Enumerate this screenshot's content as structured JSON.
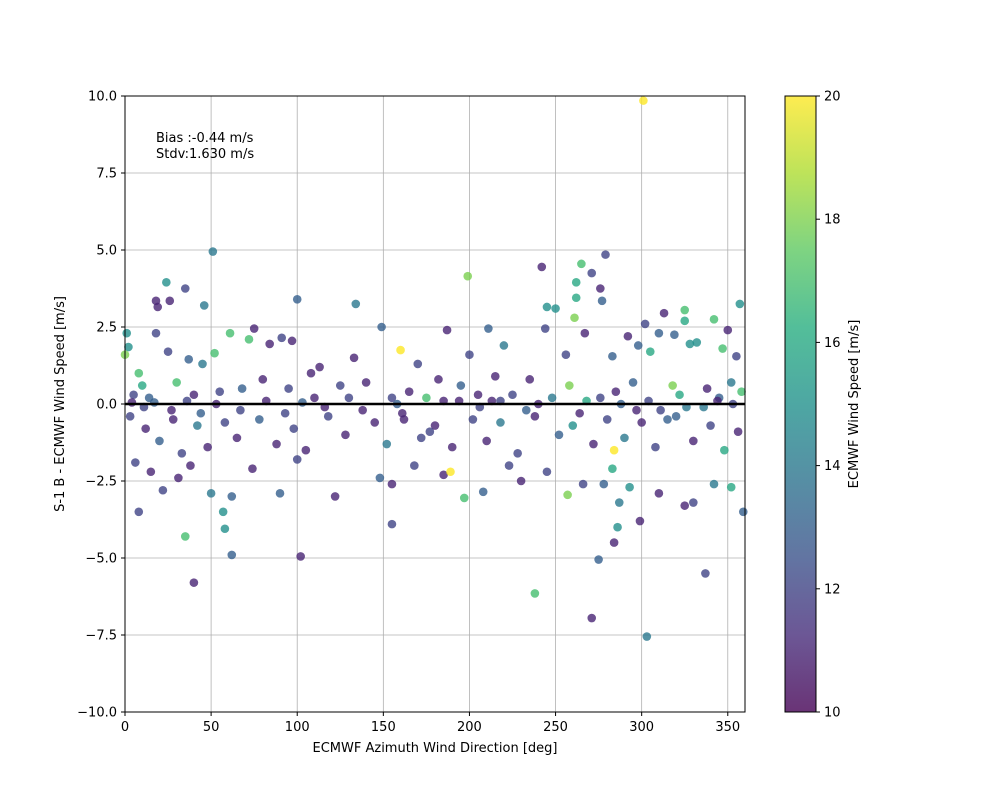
{
  "chart_data": {
    "type": "scatter",
    "xlabel": "ECMWF Azimuth Wind Direction [deg]",
    "ylabel": "S-1 B - ECMWF Wind Speed [m/s]",
    "xlim": [
      0,
      360
    ],
    "ylim": [
      -10,
      10
    ],
    "x_ticks": [
      0,
      50,
      100,
      150,
      200,
      250,
      300,
      350
    ],
    "y_ticks": [
      -10.0,
      -7.5,
      -5.0,
      -2.5,
      0.0,
      2.5,
      5.0,
      7.5,
      10.0
    ],
    "x_tick_labels": [
      "0",
      "50",
      "100",
      "150",
      "200",
      "250",
      "300",
      "350"
    ],
    "y_tick_labels": [
      "−10.0",
      "−7.5",
      "−5.0",
      "−2.5",
      "0.0",
      "2.5",
      "5.0",
      "7.5",
      "10.0"
    ],
    "grid": true,
    "reference_line": {
      "y": 0,
      "color": "#000000"
    },
    "annotations": {
      "bias": "Bias :-0.44 m/s",
      "stdv": "Stdv:1.630 m/s"
    },
    "colorbar": {
      "label": "ECMWF Wind Speed [m/s]",
      "range": [
        10,
        20
      ],
      "ticks": [
        10,
        12,
        14,
        16,
        18,
        20
      ],
      "tick_labels": [
        "10",
        "12",
        "14",
        "16",
        "18",
        "20"
      ],
      "colormap": "viridis"
    },
    "marker_alpha": 0.8,
    "points": [
      [
        301,
        9.85,
        20
      ],
      [
        51,
        4.95,
        14
      ],
      [
        199,
        4.15,
        18
      ],
      [
        242,
        4.45,
        11
      ],
      [
        279,
        4.85,
        12
      ],
      [
        265,
        4.55,
        17
      ],
      [
        271,
        4.25,
        12
      ],
      [
        24,
        3.95,
        15
      ],
      [
        35,
        3.75,
        12
      ],
      [
        100,
        3.4,
        13
      ],
      [
        134,
        3.25,
        14
      ],
      [
        46,
        3.2,
        14
      ],
      [
        18,
        3.35,
        11
      ],
      [
        19,
        3.15,
        11
      ],
      [
        26,
        3.35,
        11
      ],
      [
        262,
        3.95,
        16
      ],
      [
        262,
        3.45,
        16
      ],
      [
        276,
        3.75,
        11
      ],
      [
        277,
        3.35,
        13
      ],
      [
        245,
        3.15,
        15
      ],
      [
        250,
        3.1,
        15
      ],
      [
        325,
        3.05,
        17
      ],
      [
        313,
        2.95,
        11
      ],
      [
        357,
        3.25,
        15
      ],
      [
        342,
        2.75,
        17
      ],
      [
        261,
        2.8,
        18
      ],
      [
        302,
        2.6,
        12
      ],
      [
        325,
        2.7,
        16
      ],
      [
        149,
        2.5,
        13
      ],
      [
        1,
        2.3,
        15
      ],
      [
        18,
        2.3,
        12
      ],
      [
        61,
        2.3,
        17
      ],
      [
        75,
        2.45,
        11
      ],
      [
        91,
        2.15,
        12
      ],
      [
        97,
        2.05,
        11
      ],
      [
        113,
        1.2,
        11
      ],
      [
        160,
        1.75,
        20
      ],
      [
        187,
        2.4,
        11
      ],
      [
        211,
        2.45,
        13
      ],
      [
        244,
        2.45,
        12
      ],
      [
        267,
        2.3,
        11
      ],
      [
        292,
        2.2,
        11
      ],
      [
        310,
        2.3,
        13
      ],
      [
        319,
        2.25,
        13
      ],
      [
        332,
        2.0,
        15
      ],
      [
        350,
        2.4,
        11
      ],
      [
        2,
        1.85,
        15
      ],
      [
        25,
        1.7,
        12
      ],
      [
        37,
        1.45,
        13
      ],
      [
        52,
        1.65,
        17
      ],
      [
        72,
        2.1,
        17
      ],
      [
        84,
        1.95,
        11
      ],
      [
        108,
        1.0,
        11
      ],
      [
        133,
        1.5,
        11
      ],
      [
        170,
        1.3,
        12
      ],
      [
        200,
        1.6,
        12
      ],
      [
        220,
        1.9,
        14
      ],
      [
        256,
        1.6,
        12
      ],
      [
        283,
        1.55,
        13
      ],
      [
        298,
        1.9,
        13
      ],
      [
        305,
        1.7,
        16
      ],
      [
        328,
        1.95,
        15
      ],
      [
        347,
        1.8,
        17
      ],
      [
        355,
        1.55,
        12
      ],
      [
        0,
        1.6,
        18
      ],
      [
        5,
        0.3,
        12
      ],
      [
        8,
        1.0,
        17
      ],
      [
        10,
        0.6,
        16
      ],
      [
        14,
        0.2,
        13
      ],
      [
        30,
        0.7,
        17
      ],
      [
        40,
        0.3,
        11
      ],
      [
        45,
        1.3,
        14
      ],
      [
        55,
        0.4,
        12
      ],
      [
        68,
        0.5,
        13
      ],
      [
        80,
        0.8,
        11
      ],
      [
        95,
        0.5,
        12
      ],
      [
        110,
        0.2,
        11
      ],
      [
        125,
        0.6,
        12
      ],
      [
        140,
        0.7,
        11
      ],
      [
        155,
        0.2,
        12
      ],
      [
        165,
        0.4,
        11
      ],
      [
        175,
        0.2,
        17
      ],
      [
        182,
        0.8,
        11
      ],
      [
        195,
        0.6,
        13
      ],
      [
        205,
        0.3,
        11
      ],
      [
        215,
        0.9,
        11
      ],
      [
        225,
        0.3,
        12
      ],
      [
        235,
        0.8,
        11
      ],
      [
        248,
        0.2,
        14
      ],
      [
        258,
        0.6,
        18
      ],
      [
        268,
        0.1,
        16
      ],
      [
        285,
        0.4,
        11
      ],
      [
        295,
        0.7,
        13
      ],
      [
        318,
        0.6,
        18
      ],
      [
        322,
        0.3,
        16
      ],
      [
        338,
        0.5,
        11
      ],
      [
        345,
        0.2,
        13
      ],
      [
        352,
        0.7,
        14
      ],
      [
        358,
        0.4,
        17
      ],
      [
        3,
        -0.4,
        12
      ],
      [
        12,
        -0.8,
        11
      ],
      [
        20,
        -1.2,
        13
      ],
      [
        28,
        -0.5,
        11
      ],
      [
        33,
        -1.6,
        12
      ],
      [
        42,
        -0.7,
        14
      ],
      [
        48,
        -1.4,
        11
      ],
      [
        58,
        -0.6,
        12
      ],
      [
        65,
        -1.1,
        11
      ],
      [
        78,
        -0.5,
        13
      ],
      [
        88,
        -1.3,
        11
      ],
      [
        98,
        -0.8,
        12
      ],
      [
        105,
        -1.5,
        11
      ],
      [
        118,
        -0.4,
        12
      ],
      [
        128,
        -1.0,
        11
      ],
      [
        145,
        -0.6,
        11
      ],
      [
        152,
        -1.3,
        14
      ],
      [
        162,
        -0.5,
        11
      ],
      [
        172,
        -1.1,
        12
      ],
      [
        180,
        -0.7,
        11
      ],
      [
        190,
        -1.4,
        11
      ],
      [
        202,
        -0.5,
        12
      ],
      [
        210,
        -1.2,
        11
      ],
      [
        218,
        -0.6,
        14
      ],
      [
        228,
        -1.6,
        12
      ],
      [
        238,
        -0.4,
        11
      ],
      [
        252,
        -1.0,
        13
      ],
      [
        260,
        -0.7,
        15
      ],
      [
        272,
        -1.3,
        11
      ],
      [
        280,
        -0.5,
        12
      ],
      [
        290,
        -1.1,
        14
      ],
      [
        300,
        -0.6,
        11
      ],
      [
        308,
        -1.4,
        12
      ],
      [
        315,
        -0.5,
        13
      ],
      [
        330,
        -1.2,
        11
      ],
      [
        340,
        -0.7,
        12
      ],
      [
        348,
        -1.5,
        16
      ],
      [
        356,
        -0.9,
        11
      ],
      [
        6,
        -1.9,
        12
      ],
      [
        15,
        -2.2,
        11
      ],
      [
        22,
        -2.8,
        12
      ],
      [
        31,
        -2.4,
        11
      ],
      [
        38,
        -2.0,
        11
      ],
      [
        50,
        -2.9,
        14
      ],
      [
        57,
        -3.5,
        15
      ],
      [
        62,
        -3.0,
        13
      ],
      [
        74,
        -2.1,
        11
      ],
      [
        90,
        -2.9,
        13
      ],
      [
        100,
        -1.8,
        12
      ],
      [
        122,
        -3.0,
        11
      ],
      [
        148,
        -2.4,
        13
      ],
      [
        155,
        -2.6,
        11
      ],
      [
        168,
        -2.0,
        12
      ],
      [
        185,
        -2.3,
        11
      ],
      [
        197,
        -3.05,
        17
      ],
      [
        208,
        -2.85,
        13
      ],
      [
        223,
        -2.0,
        12
      ],
      [
        230,
        -2.5,
        11
      ],
      [
        245,
        -2.2,
        12
      ],
      [
        257,
        -2.95,
        18
      ],
      [
        266,
        -2.6,
        12
      ],
      [
        278,
        -2.6,
        13
      ],
      [
        283,
        -2.1,
        16
      ],
      [
        287,
        -3.2,
        14
      ],
      [
        293,
        -2.7,
        15
      ],
      [
        310,
        -2.9,
        11
      ],
      [
        325,
        -3.3,
        11
      ],
      [
        330,
        -3.2,
        12
      ],
      [
        342,
        -2.6,
        14
      ],
      [
        352,
        -2.7,
        16
      ],
      [
        359,
        -3.5,
        13
      ],
      [
        8,
        -3.5,
        12
      ],
      [
        35,
        -4.3,
        17
      ],
      [
        40,
        -5.8,
        11
      ],
      [
        62,
        -4.9,
        13
      ],
      [
        58,
        -4.05,
        15
      ],
      [
        102,
        -4.95,
        11
      ],
      [
        155,
        -3.9,
        12
      ],
      [
        284,
        -4.5,
        11
      ],
      [
        286,
        -4.0,
        15
      ],
      [
        299,
        -3.8,
        11
      ],
      [
        275,
        -5.05,
        13
      ],
      [
        337,
        -5.5,
        12
      ],
      [
        238,
        -6.15,
        17
      ],
      [
        271,
        -6.95,
        11
      ],
      [
        303,
        -7.55,
        14
      ],
      [
        189,
        -2.2,
        20
      ],
      [
        284,
        -1.5,
        20
      ],
      [
        161,
        -0.3,
        11
      ],
      [
        177,
        -0.9,
        12
      ],
      [
        194,
        0.1,
        11
      ],
      [
        206,
        -0.1,
        12
      ],
      [
        213,
        0.1,
        11
      ],
      [
        233,
        -0.2,
        13
      ],
      [
        264,
        -0.3,
        11
      ],
      [
        311,
        -0.2,
        12
      ],
      [
        320,
        -0.4,
        13
      ],
      [
        336,
        -0.1,
        14
      ],
      [
        344,
        0.1,
        11
      ],
      [
        4,
        0.05,
        11
      ],
      [
        11,
        -0.1,
        12
      ],
      [
        17,
        0.05,
        13
      ],
      [
        27,
        -0.2,
        11
      ],
      [
        36,
        0.1,
        12
      ],
      [
        44,
        -0.3,
        13
      ],
      [
        53,
        0.0,
        11
      ],
      [
        67,
        -0.2,
        12
      ],
      [
        82,
        0.1,
        11
      ],
      [
        93,
        -0.3,
        12
      ],
      [
        103,
        0.05,
        13
      ],
      [
        116,
        -0.1,
        11
      ],
      [
        130,
        0.2,
        12
      ],
      [
        138,
        -0.2,
        11
      ],
      [
        158,
        0.0,
        13
      ],
      [
        185,
        0.1,
        11
      ],
      [
        218,
        0.1,
        12
      ],
      [
        240,
        0.0,
        11
      ],
      [
        276,
        0.2,
        12
      ],
      [
        288,
        0.0,
        13
      ],
      [
        297,
        -0.2,
        11
      ],
      [
        304,
        0.1,
        12
      ],
      [
        326,
        -0.1,
        14
      ],
      [
        353,
        0.0,
        12
      ]
    ]
  }
}
